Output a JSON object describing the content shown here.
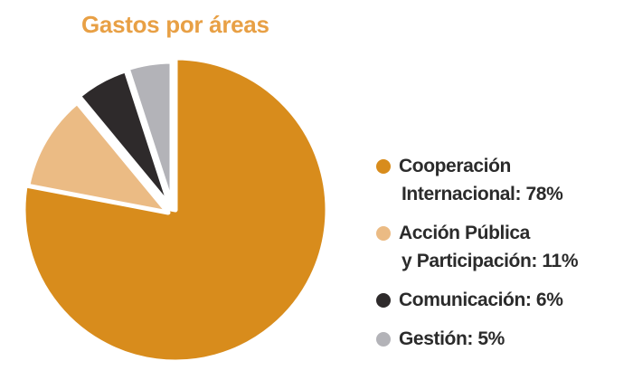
{
  "chart_data": {
    "type": "pie",
    "title": "Gastos por áreas",
    "slices": [
      {
        "label_line1": "Cooperación",
        "label_line2": "Internacional: 78%",
        "value": 78,
        "color": "#D88C1C"
      },
      {
        "label_line1": "Acción Pública",
        "label_line2": "y Participación: 11%",
        "value": 11,
        "color": "#EBBB84"
      },
      {
        "label_line1": "Comunicación: 6%",
        "label_line2": "",
        "value": 6,
        "color": "#2E2A2B"
      },
      {
        "label_line1": "Gestión: 5%",
        "label_line2": "",
        "value": 5,
        "color": "#B3B3B8"
      }
    ],
    "legend_position": "right",
    "start_angle": "12 o'clock, clockwise",
    "exploded": true
  }
}
